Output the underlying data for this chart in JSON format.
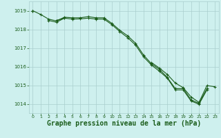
{
  "title": "Graphe pression niveau de la mer (hPa)",
  "x": [
    0,
    1,
    2,
    3,
    4,
    5,
    6,
    7,
    8,
    9,
    10,
    11,
    12,
    13,
    14,
    15,
    16,
    17,
    18,
    19,
    20,
    21,
    22,
    23
  ],
  "line1": [
    1019.0,
    1018.8,
    1018.55,
    1018.45,
    1018.65,
    1018.62,
    1018.62,
    1018.68,
    1018.62,
    1018.62,
    1018.32,
    1017.95,
    1017.65,
    1017.25,
    1016.62,
    1016.15,
    1015.85,
    1015.42,
    1014.82,
    1014.82,
    1014.22,
    1014.02,
    1014.82,
    null
  ],
  "line2": [
    1018.98,
    null,
    1018.48,
    1018.38,
    1018.6,
    1018.55,
    1018.56,
    1018.6,
    1018.55,
    1018.55,
    1018.25,
    1017.88,
    1017.55,
    1017.15,
    1016.52,
    1016.08,
    1015.75,
    1015.38,
    1014.75,
    1014.75,
    1014.15,
    1013.98,
    1014.75,
    null
  ],
  "line3": [
    1019.0,
    null,
    null,
    1018.48,
    1018.6,
    null,
    null,
    null,
    null,
    null,
    null,
    null,
    null,
    null,
    null,
    1016.22,
    1015.92,
    1015.58,
    1015.12,
    1014.87,
    1014.37,
    1014.08,
    1014.98,
    1014.92
  ],
  "ylim_min": 1013.5,
  "ylim_max": 1019.5,
  "yticks": [
    1014,
    1015,
    1016,
    1017,
    1018,
    1019
  ],
  "bg_color": "#cef0ee",
  "line_color": "#1a5c1a",
  "grid_color": "#aacece"
}
